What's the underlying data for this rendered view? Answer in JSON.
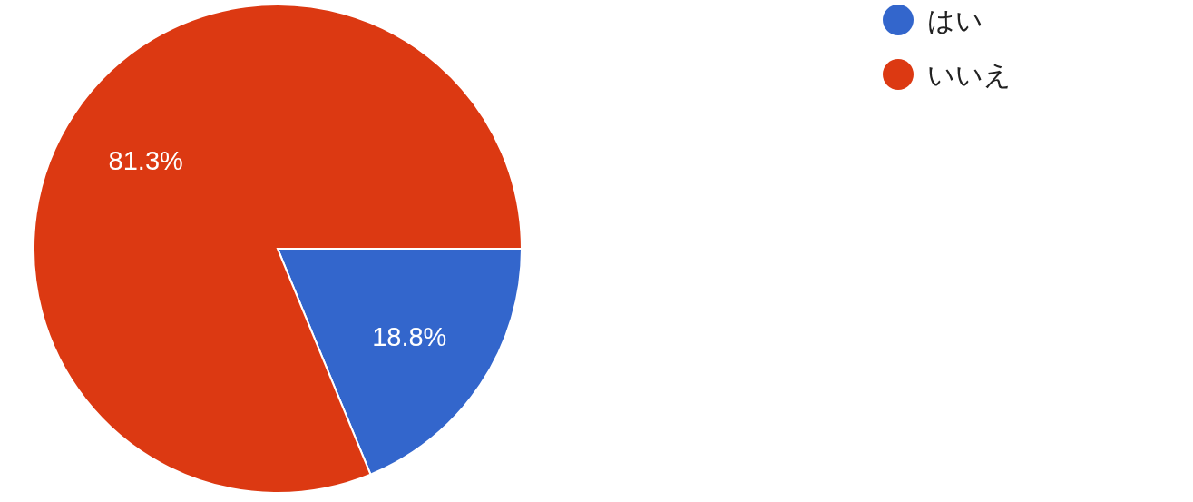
{
  "chart_data": {
    "type": "pie",
    "categories": [
      "はい",
      "いいえ"
    ],
    "values": [
      18.8,
      81.3
    ],
    "colors": [
      "#3366cc",
      "#dc3912"
    ],
    "value_labels": [
      "18.8%",
      "81.3%"
    ],
    "legend": "top right"
  }
}
